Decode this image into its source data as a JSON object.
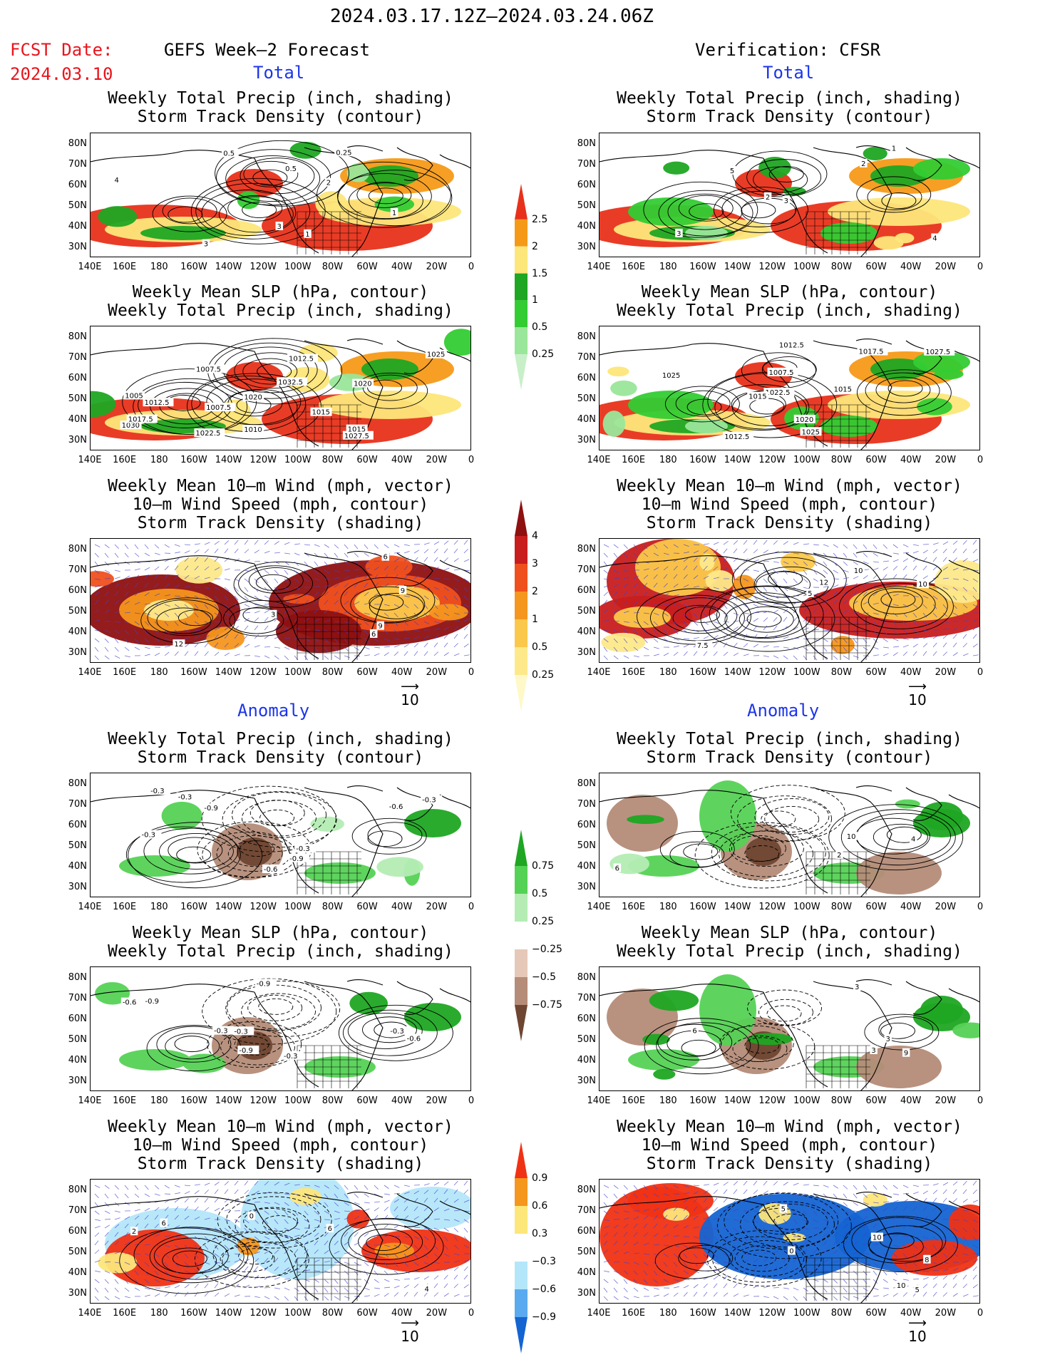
{
  "header": {
    "date_range": "2024.03.17.12Z–2024.03.24.06Z",
    "fcst_label": "FCST Date:",
    "fcst_date": "2024.03.10",
    "left_title": "GEFS Week–2 Forecast",
    "right_title": "Verification: CFSR"
  },
  "sections": {
    "total": "Total",
    "anomaly": "Anomaly"
  },
  "panel_titles": {
    "precip_storm": [
      "Weekly Total Precip (inch, shading)",
      "Storm Track Density (contour)"
    ],
    "slp_precip": [
      "Weekly Mean SLP (hPa, contour)",
      "Weekly Total Precip (inch, shading)"
    ],
    "wind_storm": [
      "Weekly Mean 10–m Wind (mph, vector)",
      "10–m Wind Speed (mph, contour)",
      "Storm Track Density (shading)"
    ]
  },
  "axes": {
    "lat_labels": [
      "80N",
      "70N",
      "60N",
      "50N",
      "40N",
      "30N"
    ],
    "lon_labels": [
      "140E",
      "160E",
      "180",
      "160W",
      "140W",
      "120W",
      "100W",
      "80W",
      "60W",
      "40W",
      "20W",
      "0"
    ]
  },
  "vector_ref": "10",
  "colorbars": {
    "precip_total": {
      "labels": [
        "2.5",
        "2",
        "1.5",
        "1",
        "0.5",
        "0.25"
      ],
      "colors": [
        "#e8311a",
        "#f59a18",
        "#fde67a",
        "#1fa623",
        "#33cc33",
        "#9ae69a",
        "#c8f0c8"
      ]
    },
    "storm_total": {
      "labels": [
        "4",
        "3",
        "2",
        "1",
        "0.5",
        "0.25"
      ],
      "colors": [
        "#8e1010",
        "#c81e1e",
        "#f0501e",
        "#f5961e",
        "#fbc84b",
        "#fde98a",
        "#fff8c8"
      ]
    },
    "precip_anom": {
      "labels": [
        "0.75",
        "0.5",
        "0.25",
        "−0.25",
        "−0.5",
        "−0.75"
      ],
      "colors": [
        "#1fa623",
        "#55d255",
        "#b4ecb4",
        "#ffffff",
        "#e6c8b9",
        "#b48c78",
        "#6e4632"
      ]
    },
    "storm_anom": {
      "labels": [
        "0.9",
        "0.6",
        "0.3",
        "−0.3",
        "−0.6",
        "−0.9"
      ],
      "colors": [
        "#f03214",
        "#f5961e",
        "#fde67a",
        "#ffffff",
        "#b4e6fa",
        "#5aaaf0",
        "#1464d2"
      ]
    }
  },
  "contour_labels": {
    "p1": [
      "3",
      "1",
      "0.5",
      "0.25",
      "0.5",
      "4",
      "3",
      "2",
      "1"
    ],
    "p2": [
      "1030",
      "1027.5",
      "1032.5",
      "1020",
      "1015",
      "1012.5",
      "1010",
      "1025",
      "1022.5",
      "1020",
      "1005",
      "1007.5",
      "1017.5",
      "1007.5",
      "1012.5",
      "1015"
    ],
    "p3": [
      "9",
      "6",
      "3",
      "6",
      "9",
      "12"
    ],
    "p4": [
      "2",
      "5",
      "4",
      "3",
      "3",
      "2",
      "1"
    ],
    "p5": [
      "1012.5",
      "1007.5",
      "1027.5",
      "1025",
      "1022.5",
      "1020",
      "1017.5",
      "1015",
      "1025",
      "1012.5",
      "1015"
    ],
    "p6": [
      "7.5",
      "5",
      "10",
      "12",
      "10"
    ],
    "a1": [
      "-0.3",
      "-0.3",
      "-0.6",
      "-0.6",
      "-0.3",
      "-0.9",
      "-0.3",
      "-0.9",
      "-0.3"
    ],
    "a2": [
      "-0.3",
      "-0.6",
      "-0.9",
      "-0.6",
      "-0.9",
      "-0.3",
      "-0.9",
      "-0.3",
      "-0.3"
    ],
    "a3": [
      "2",
      "6",
      "0",
      "4",
      "6"
    ],
    "a4": [
      "6",
      "10",
      "4",
      "2"
    ],
    "a5": [
      "3",
      "3",
      "9",
      "3",
      "6"
    ],
    "a6": [
      "0",
      "8",
      "10",
      "10",
      "5",
      "5"
    ]
  }
}
